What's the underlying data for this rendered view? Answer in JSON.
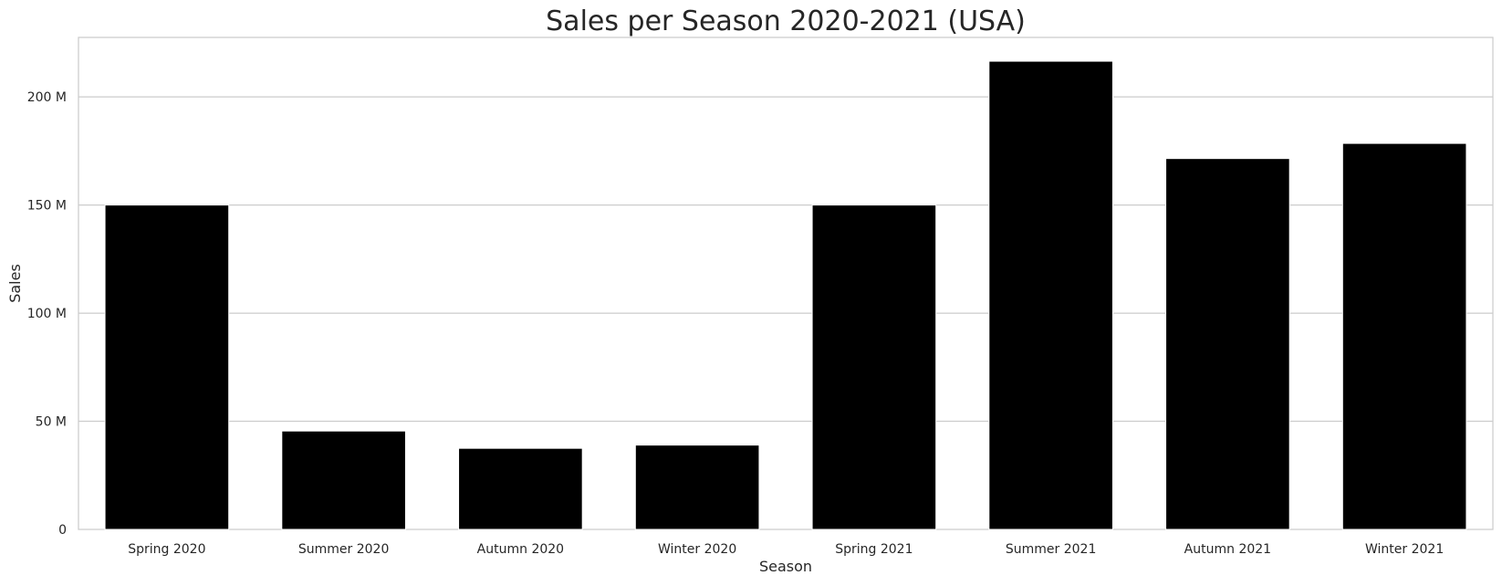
{
  "chart_data": {
    "type": "bar",
    "title": "Sales per Season 2020-2021 (USA)",
    "xlabel": "Season",
    "ylabel": "Sales",
    "categories": [
      "Spring 2020",
      "Summer 2020",
      "Autumn 2020",
      "Winter 2020",
      "Spring 2021",
      "Summer 2021",
      "Autumn 2021",
      "Winter 2021"
    ],
    "values": [
      150000000,
      45500000,
      37500000,
      39000000,
      150000000,
      216500000,
      171500000,
      178500000
    ],
    "ylim": [
      0,
      227500000
    ],
    "yticks": [
      {
        "value": 0,
        "label": "0"
      },
      {
        "value": 50000000,
        "label": "50 M"
      },
      {
        "value": 100000000,
        "label": "100 M"
      },
      {
        "value": 150000000,
        "label": "150 M"
      },
      {
        "value": 200000000,
        "label": "200 M"
      }
    ],
    "grid": "y",
    "bar_color": "#000000",
    "grid_color": "#cccccc",
    "spine_color": "#cccccc"
  }
}
